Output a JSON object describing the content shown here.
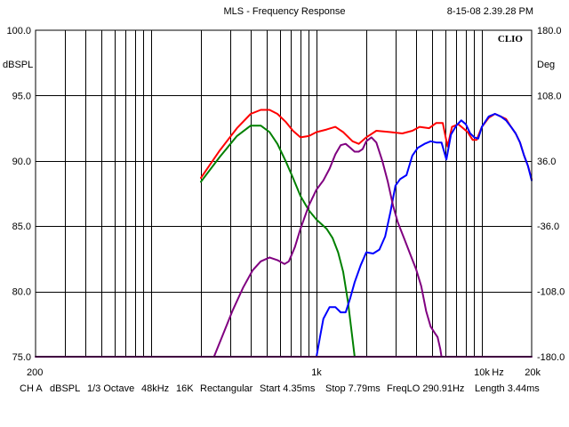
{
  "header": {
    "title": "MLS - Frequency Response",
    "timestamp": "8-15-08 2.39.28 PM",
    "brand": "CLIO"
  },
  "footer": {
    "channel": "CH A",
    "unit": "dBSPL",
    "smoothing": "1/3 Octave",
    "sample_rate": "48kHz",
    "size": "16K",
    "window": "Rectangular",
    "start": "Start 4.35ms",
    "stop": "Stop 7.79ms",
    "freqlo": "FreqLO 290.91Hz",
    "length": "Length 3.44ms"
  },
  "chart_data": {
    "type": "line",
    "xscale": "log",
    "xlim": [
      20,
      20000
    ],
    "ylim": [
      75,
      100
    ],
    "y2lim": [
      -180,
      180
    ],
    "ylabel": "dBSPL",
    "y2label": "Deg",
    "xlabel": "Hz",
    "grid": true,
    "x_tick_labels": [
      "200",
      "1k",
      "10k",
      "20k"
    ],
    "y_tick_labels": [
      "100.0",
      "95.0",
      "90.0",
      "85.0",
      "80.0",
      "75.0"
    ],
    "y2_tick_labels": [
      "180.0",
      "108.0",
      "36.0",
      "-36.0",
      "-108.0",
      "-180.0"
    ],
    "series": [
      {
        "color": "#ff0000",
        "points": [
          [
            200,
            88.7
          ],
          [
            260,
            90.8
          ],
          [
            330,
            92.5
          ],
          [
            400,
            93.6
          ],
          [
            460,
            93.9
          ],
          [
            520,
            93.9
          ],
          [
            580,
            93.6
          ],
          [
            650,
            93.0
          ],
          [
            720,
            92.3
          ],
          [
            800,
            91.8
          ],
          [
            900,
            91.9
          ],
          [
            1000,
            92.2
          ],
          [
            1150,
            92.4
          ],
          [
            1300,
            92.6
          ],
          [
            1450,
            92.2
          ],
          [
            1650,
            91.5
          ],
          [
            1800,
            91.3
          ],
          [
            2000,
            91.8
          ],
          [
            2300,
            92.3
          ],
          [
            2800,
            92.2
          ],
          [
            3300,
            92.1
          ],
          [
            3800,
            92.3
          ],
          [
            4200,
            92.6
          ],
          [
            4800,
            92.5
          ],
          [
            5300,
            92.9
          ],
          [
            5800,
            92.9
          ],
          [
            6200,
            91.1
          ],
          [
            6600,
            92.6
          ],
          [
            7200,
            92.8
          ],
          [
            7700,
            92.5
          ],
          [
            8200,
            92.2
          ],
          [
            8800,
            91.6
          ],
          [
            9300,
            91.6
          ],
          [
            10000,
            92.6
          ],
          [
            11000,
            93.3
          ],
          [
            12000,
            93.6
          ],
          [
            13000,
            93.4
          ],
          [
            14000,
            93.2
          ],
          [
            15000,
            92.6
          ],
          [
            16000,
            92.1
          ],
          [
            17000,
            91.4
          ],
          [
            18000,
            90.4
          ],
          [
            19000,
            89.6
          ],
          [
            20000,
            88.6
          ]
        ]
      },
      {
        "color": "#008000",
        "points": [
          [
            200,
            88.4
          ],
          [
            260,
            90.3
          ],
          [
            330,
            91.9
          ],
          [
            400,
            92.7
          ],
          [
            460,
            92.7
          ],
          [
            520,
            92.2
          ],
          [
            580,
            91.3
          ],
          [
            650,
            90.0
          ],
          [
            720,
            88.7
          ],
          [
            800,
            87.3
          ],
          [
            900,
            86.2
          ],
          [
            1000,
            85.5
          ],
          [
            1150,
            84.8
          ],
          [
            1250,
            84.1
          ],
          [
            1350,
            83.0
          ],
          [
            1450,
            81.5
          ],
          [
            1550,
            79.2
          ],
          [
            1620,
            77.2
          ],
          [
            1700,
            75.0
          ]
        ]
      },
      {
        "color": "#0000ff",
        "points": [
          [
            1000,
            75.0
          ],
          [
            1050,
            76.5
          ],
          [
            1100,
            77.9
          ],
          [
            1200,
            78.8
          ],
          [
            1300,
            78.8
          ],
          [
            1400,
            78.4
          ],
          [
            1500,
            78.4
          ],
          [
            1600,
            79.5
          ],
          [
            1700,
            80.7
          ],
          [
            1850,
            82.0
          ],
          [
            2000,
            83.0
          ],
          [
            2200,
            82.9
          ],
          [
            2400,
            83.2
          ],
          [
            2600,
            84.2
          ],
          [
            2800,
            86.1
          ],
          [
            3000,
            88.1
          ],
          [
            3200,
            88.6
          ],
          [
            3500,
            88.9
          ],
          [
            3800,
            90.4
          ],
          [
            4100,
            91.0
          ],
          [
            4500,
            91.3
          ],
          [
            4900,
            91.5
          ],
          [
            5300,
            91.4
          ],
          [
            5700,
            91.4
          ],
          [
            6100,
            90.1
          ],
          [
            6500,
            92.0
          ],
          [
            7000,
            92.7
          ],
          [
            7500,
            93.1
          ],
          [
            8000,
            92.8
          ],
          [
            8500,
            92.1
          ],
          [
            9000,
            91.8
          ],
          [
            9500,
            91.7
          ],
          [
            10000,
            92.6
          ],
          [
            11000,
            93.4
          ],
          [
            12000,
            93.6
          ],
          [
            13000,
            93.4
          ],
          [
            14000,
            93.1
          ],
          [
            15000,
            92.6
          ],
          [
            16000,
            92.1
          ],
          [
            17000,
            91.4
          ],
          [
            18000,
            90.4
          ],
          [
            19000,
            89.6
          ],
          [
            20000,
            88.5
          ]
        ]
      },
      {
        "color": "#800080",
        "points": [
          [
            240,
            75.0
          ],
          [
            270,
            76.6
          ],
          [
            310,
            78.5
          ],
          [
            360,
            80.3
          ],
          [
            410,
            81.6
          ],
          [
            460,
            82.3
          ],
          [
            520,
            82.6
          ],
          [
            580,
            82.4
          ],
          [
            640,
            82.1
          ],
          [
            680,
            82.3
          ],
          [
            740,
            83.4
          ],
          [
            800,
            84.8
          ],
          [
            900,
            86.6
          ],
          [
            1000,
            87.8
          ],
          [
            1100,
            88.5
          ],
          [
            1200,
            89.4
          ],
          [
            1300,
            90.5
          ],
          [
            1400,
            91.2
          ],
          [
            1500,
            91.3
          ],
          [
            1600,
            91.0
          ],
          [
            1700,
            90.7
          ],
          [
            1800,
            90.7
          ],
          [
            1900,
            90.9
          ],
          [
            2000,
            91.5
          ],
          [
            2150,
            91.8
          ],
          [
            2300,
            91.4
          ],
          [
            2500,
            90.0
          ],
          [
            2700,
            88.4
          ],
          [
            2900,
            86.6
          ],
          [
            3100,
            85.3
          ],
          [
            3400,
            84.0
          ],
          [
            3700,
            82.8
          ],
          [
            4000,
            81.7
          ],
          [
            4300,
            80.4
          ],
          [
            4600,
            78.5
          ],
          [
            4900,
            77.3
          ],
          [
            5200,
            76.8
          ],
          [
            5400,
            76.5
          ],
          [
            5600,
            75.6
          ],
          [
            5700,
            75.0
          ]
        ]
      },
      {
        "color": "#800080",
        "points": [
          [
            20,
            75.0
          ],
          [
            5700,
            75.0
          ],
          [
            20000,
            75.0
          ]
        ]
      }
    ]
  }
}
